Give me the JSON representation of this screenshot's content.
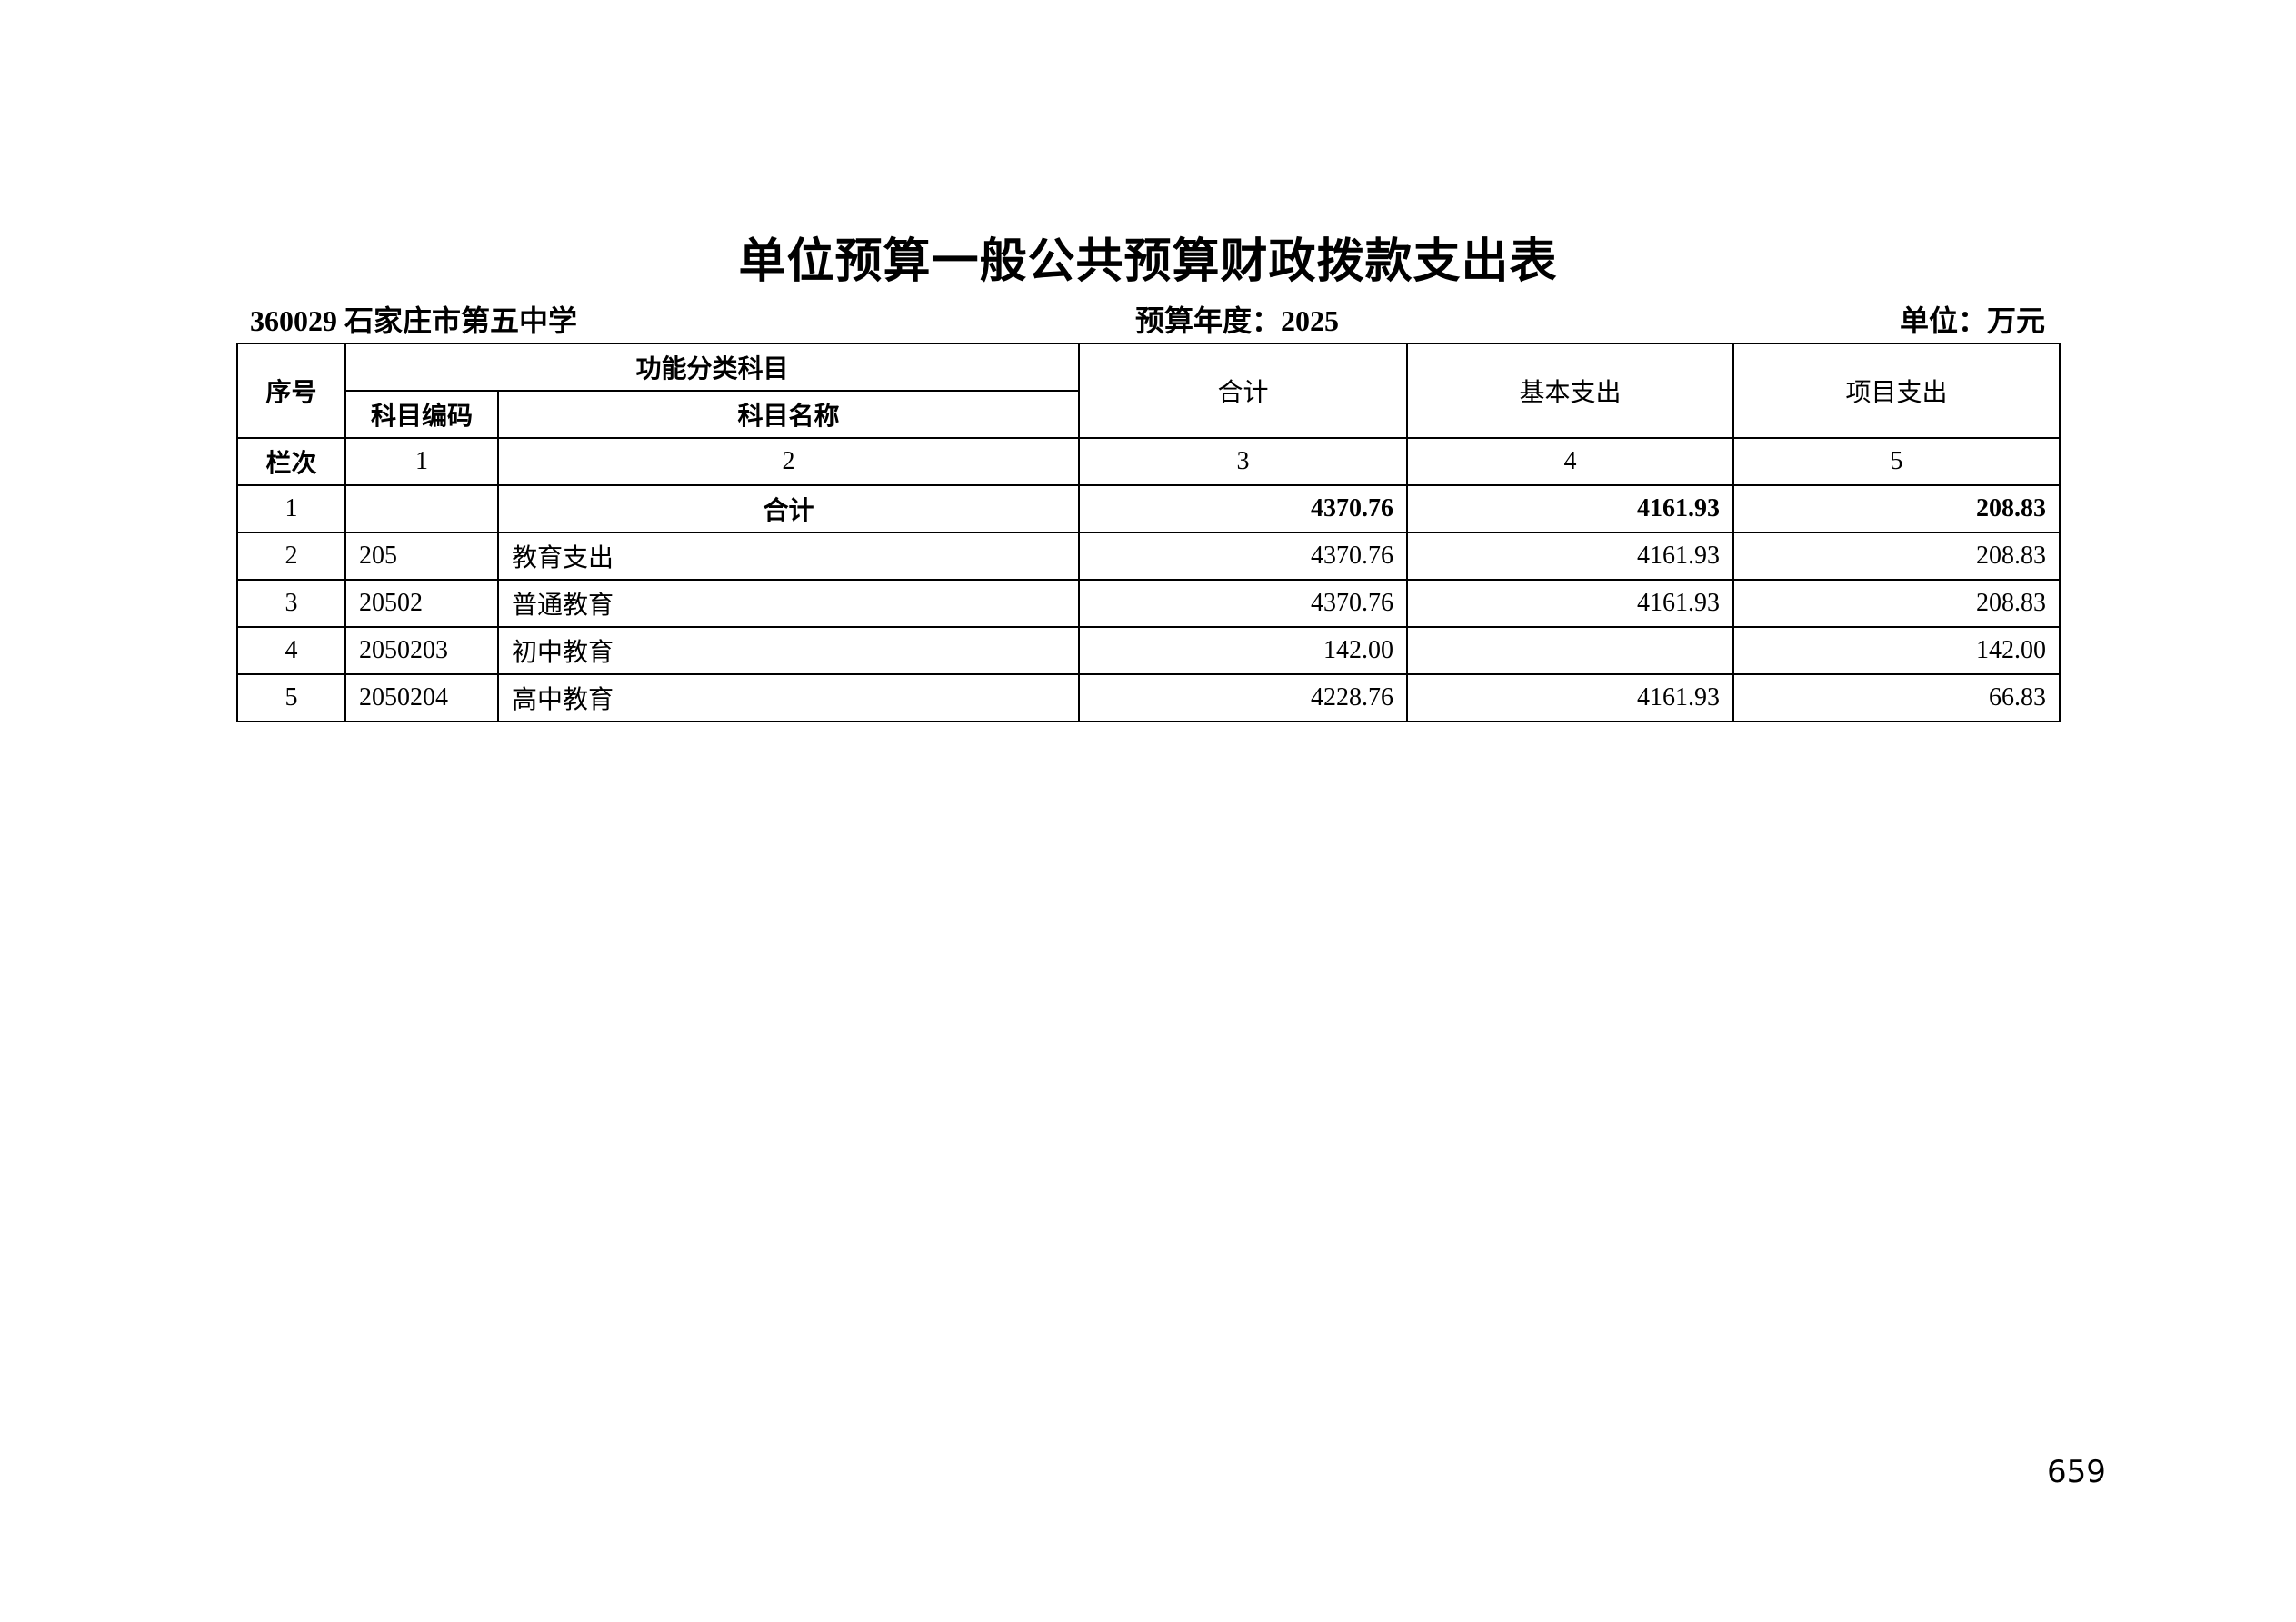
{
  "title": "单位预算一般公共预算财政拨款支出表",
  "meta": {
    "unit": "360029 石家庄市第五中学",
    "year": "预算年度：2025",
    "currency": "单位：万元"
  },
  "table": {
    "headers": {
      "seq": "序号",
      "category": "功能分类科目",
      "code": "科目编码",
      "name": "科目名称",
      "total": "合计",
      "basic": "基本支出",
      "project": "项目支出"
    },
    "column_index": {
      "label": "栏次",
      "cols": [
        "1",
        "2",
        "3",
        "4",
        "5"
      ]
    },
    "rows": [
      {
        "seq": "1",
        "code": "",
        "name": "合计",
        "total": "4370.76",
        "basic": "4161.93",
        "project": "208.83"
      },
      {
        "seq": "2",
        "code": "205",
        "name": "教育支出",
        "total": "4370.76",
        "basic": "4161.93",
        "project": "208.83"
      },
      {
        "seq": "3",
        "code": "20502",
        "name": "普通教育",
        "total": "4370.76",
        "basic": "4161.93",
        "project": "208.83"
      },
      {
        "seq": "4",
        "code": "2050203",
        "name": "初中教育",
        "total": "142.00",
        "basic": "",
        "project": "142.00"
      },
      {
        "seq": "5",
        "code": "2050204",
        "name": "高中教育",
        "total": "4228.76",
        "basic": "4161.93",
        "project": "66.83"
      }
    ]
  },
  "page_number": "659"
}
